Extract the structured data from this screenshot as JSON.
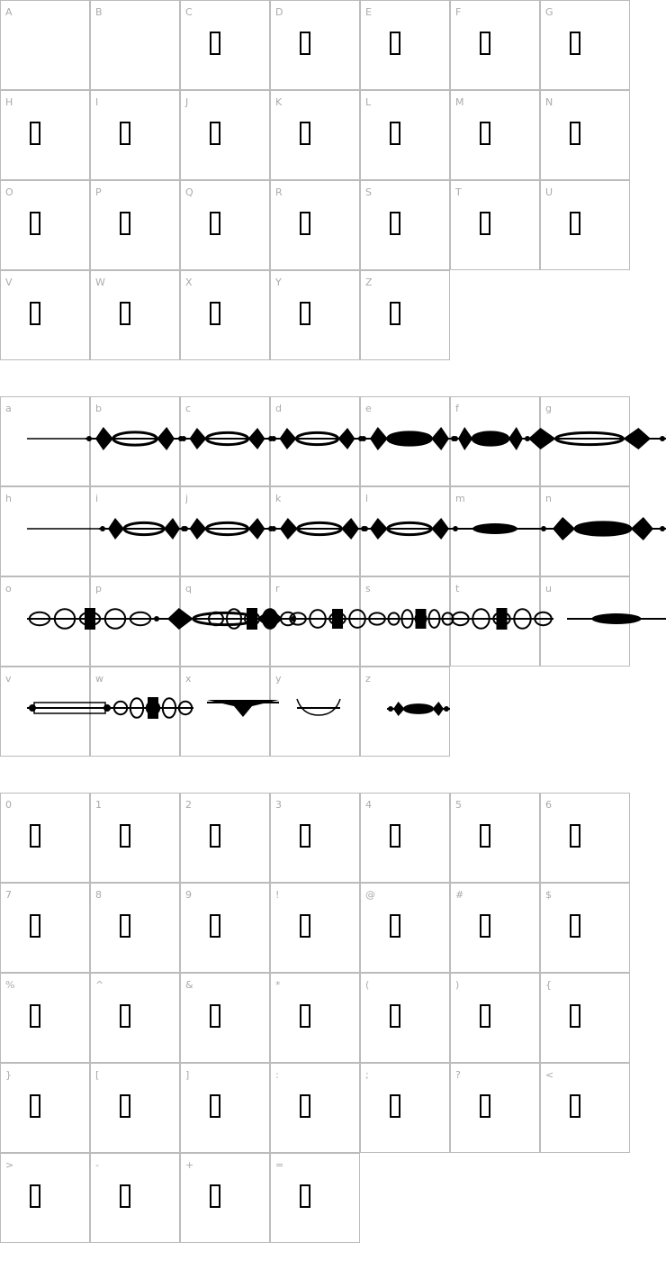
{
  "sections": [
    {
      "name": "uppercase",
      "glyph": "missing",
      "chars": [
        "A",
        "B",
        "C",
        "D",
        "E",
        "F",
        "G",
        "H",
        "I",
        "J",
        "K",
        "L",
        "M",
        "N",
        "O",
        "P",
        "Q",
        "R",
        "S",
        "T",
        "U",
        "V",
        "W",
        "X",
        "Y",
        "Z"
      ],
      "empty": [
        "A",
        "B"
      ]
    },
    {
      "name": "lowercase",
      "glyph": "ornament",
      "chars": [
        "a",
        "b",
        "c",
        "d",
        "e",
        "f",
        "g",
        "h",
        "i",
        "j",
        "k",
        "l",
        "m",
        "n",
        "o",
        "p",
        "q",
        "r",
        "s",
        "t",
        "u",
        "v",
        "w",
        "x",
        "y",
        "z"
      ]
    },
    {
      "name": "symbols",
      "glyph": "missing",
      "chars": [
        "0",
        "1",
        "2",
        "3",
        "4",
        "5",
        "6",
        "7",
        "8",
        "9",
        "!",
        "@",
        "#",
        "$",
        "%",
        "^",
        "&",
        "*",
        "(",
        ")",
        "{",
        "}",
        "[",
        "]",
        ":",
        ";",
        "?",
        "<",
        ">",
        "-",
        "+",
        "="
      ]
    }
  ],
  "colors": {
    "grid": "#bbbbbb",
    "label": "#aaaaaa",
    "glyph": "#000000"
  }
}
